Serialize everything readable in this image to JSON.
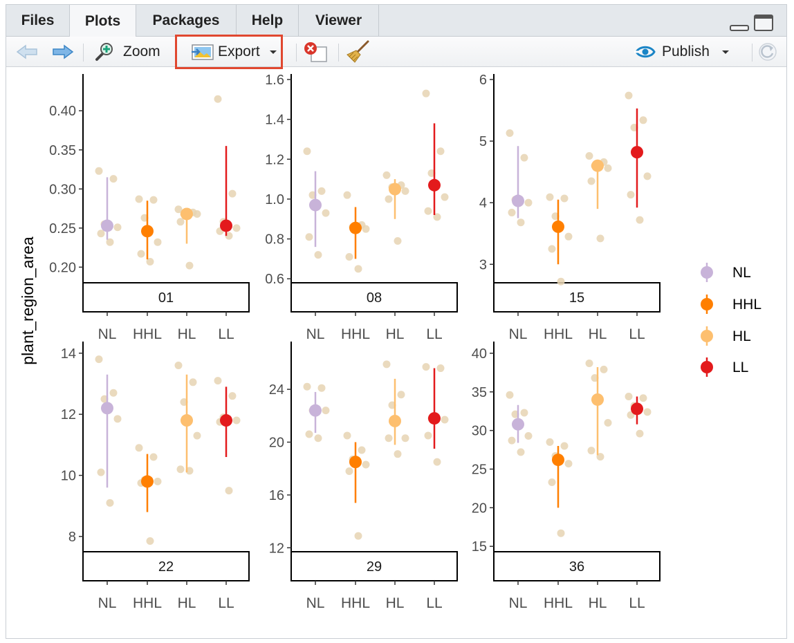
{
  "tabs": [
    {
      "label": "Files",
      "active": false
    },
    {
      "label": "Plots",
      "active": true
    },
    {
      "label": "Packages",
      "active": false
    },
    {
      "label": "Help",
      "active": false
    },
    {
      "label": "Viewer",
      "active": false
    }
  ],
  "toolbar": {
    "zoom_label": "Zoom",
    "export_label": "Export",
    "publish_label": "Publish",
    "icons": [
      "back-arrow-icon",
      "forward-arrow-icon",
      "zoom-icon",
      "export-image-icon",
      "remove-plot-icon",
      "clear-all-broom-icon",
      "publish-icon",
      "refresh-icon"
    ]
  },
  "colors": {
    "NL": "#c8b3d9",
    "HHL": "#ff7f00",
    "HL": "#fdbf6f",
    "LL": "#e31a1c",
    "raw_point": "#e6d3b3",
    "highlight": "#e0472f"
  },
  "chart_data": {
    "type": "scatter",
    "ylabel": "plant_region_area",
    "categories": [
      "NL",
      "HHL",
      "HL",
      "LL"
    ],
    "legend": {
      "position": "right",
      "entries": [
        "NL",
        "HHL",
        "HL",
        "LL"
      ]
    },
    "grid": false,
    "facets": [
      {
        "label": "01",
        "ylim": [
          0.18,
          0.44
        ],
        "yticks": [
          0.2,
          0.25,
          0.3,
          0.35,
          0.4
        ],
        "ytick_labels": [
          "0.20",
          "0.25",
          "0.30",
          "0.35",
          "0.40"
        ],
        "summary": [
          {
            "group": "NL",
            "mean": 0.253,
            "lo": 0.235,
            "hi": 0.315
          },
          {
            "group": "HHL",
            "mean": 0.246,
            "lo": 0.21,
            "hi": 0.285
          },
          {
            "group": "HL",
            "mean": 0.268,
            "lo": 0.23,
            "hi": 0.275
          },
          {
            "group": "LL",
            "mean": 0.253,
            "lo": 0.24,
            "hi": 0.355
          }
        ],
        "points": [
          {
            "group": "NL",
            "values": [
              0.323,
              0.313,
              0.255,
              0.251,
              0.243,
              0.232
            ]
          },
          {
            "group": "HHL",
            "values": [
              0.287,
              0.286,
              0.263,
              0.232,
              0.217,
              0.207
            ]
          },
          {
            "group": "HL",
            "values": [
              0.274,
              0.27,
              0.268,
              0.268,
              0.258,
              0.202
            ]
          },
          {
            "group": "LL",
            "values": [
              0.415,
              0.294,
              0.258,
              0.25,
              0.246,
              0.24
            ]
          }
        ]
      },
      {
        "label": "08",
        "ylim": [
          0.58,
          1.6
        ],
        "yticks": [
          0.6,
          0.8,
          1.0,
          1.2,
          1.4,
          1.6
        ],
        "ytick_labels": [
          "0.6",
          "0.8",
          "1.0",
          "1.2",
          "1.4",
          "1.6"
        ],
        "summary": [
          {
            "group": "NL",
            "mean": 0.97,
            "lo": 0.76,
            "hi": 1.14
          },
          {
            "group": "HHL",
            "mean": 0.855,
            "lo": 0.7,
            "hi": 0.96
          },
          {
            "group": "HL",
            "mean": 1.05,
            "lo": 0.9,
            "hi": 1.1
          },
          {
            "group": "LL",
            "mean": 1.07,
            "lo": 0.92,
            "hi": 1.38
          }
        ],
        "points": [
          {
            "group": "NL",
            "values": [
              1.24,
              1.04,
              1.02,
              0.93,
              0.81,
              0.72
            ]
          },
          {
            "group": "HHL",
            "values": [
              1.02,
              0.87,
              0.86,
              0.85,
              0.71,
              0.65
            ]
          },
          {
            "group": "HL",
            "values": [
              1.12,
              1.07,
              1.06,
              1.04,
              1.0,
              0.79
            ]
          },
          {
            "group": "LL",
            "values": [
              1.53,
              1.24,
              1.13,
              1.01,
              0.94,
              0.91
            ]
          }
        ]
      },
      {
        "label": "15",
        "ylim": [
          2.7,
          6.0
        ],
        "yticks": [
          3,
          4,
          5,
          6
        ],
        "ytick_labels": [
          "3",
          "4",
          "5",
          "6"
        ],
        "summary": [
          {
            "group": "NL",
            "mean": 4.03,
            "lo": 3.75,
            "hi": 4.92
          },
          {
            "group": "HHL",
            "mean": 3.61,
            "lo": 3.0,
            "hi": 4.05
          },
          {
            "group": "HL",
            "mean": 4.6,
            "lo": 3.9,
            "hi": 4.7
          },
          {
            "group": "LL",
            "mean": 4.82,
            "lo": 3.92,
            "hi": 5.53
          }
        ],
        "points": [
          {
            "group": "NL",
            "values": [
              5.13,
              4.73,
              4.05,
              4.0,
              3.84,
              3.68
            ]
          },
          {
            "group": "HHL",
            "values": [
              4.09,
              4.07,
              3.78,
              3.45,
              3.25,
              2.72
            ]
          },
          {
            "group": "HL",
            "values": [
              4.76,
              4.66,
              4.6,
              4.56,
              4.35,
              3.42
            ]
          },
          {
            "group": "LL",
            "values": [
              5.74,
              5.34,
              5.22,
              4.43,
              4.13,
              3.72
            ]
          }
        ]
      },
      {
        "label": "22",
        "ylim": [
          7.5,
          14.2
        ],
        "yticks": [
          8,
          10,
          12,
          14
        ],
        "ytick_labels": [
          "8",
          "10",
          "12",
          "14"
        ],
        "summary": [
          {
            "group": "NL",
            "mean": 12.2,
            "lo": 9.6,
            "hi": 13.3
          },
          {
            "group": "HHL",
            "mean": 9.8,
            "lo": 8.8,
            "hi": 10.7
          },
          {
            "group": "HL",
            "mean": 11.8,
            "lo": 10.1,
            "hi": 13.3
          },
          {
            "group": "LL",
            "mean": 11.8,
            "lo": 10.6,
            "hi": 12.9
          }
        ],
        "points": [
          {
            "group": "NL",
            "values": [
              13.8,
              12.7,
              12.5,
              11.85,
              10.1,
              9.1
            ]
          },
          {
            "group": "HHL",
            "values": [
              10.9,
              10.6,
              9.85,
              9.8,
              9.75,
              7.85
            ]
          },
          {
            "group": "HL",
            "values": [
              13.6,
              13.05,
              12.4,
              11.3,
              10.2,
              10.15
            ]
          },
          {
            "group": "LL",
            "values": [
              13.1,
              12.6,
              11.9,
              11.8,
              11.75,
              9.5
            ]
          }
        ]
      },
      {
        "label": "29",
        "ylim": [
          11.7,
          27.2
        ],
        "yticks": [
          12,
          16,
          20,
          24
        ],
        "ytick_labels": [
          "12",
          "16",
          "20",
          "24"
        ],
        "summary": [
          {
            "group": "NL",
            "mean": 22.4,
            "lo": 20.7,
            "hi": 23.8
          },
          {
            "group": "HHL",
            "mean": 18.5,
            "lo": 15.4,
            "hi": 20.0
          },
          {
            "group": "HL",
            "mean": 21.6,
            "lo": 19.8,
            "hi": 24.8
          },
          {
            "group": "LL",
            "mean": 21.8,
            "lo": 19.5,
            "hi": 25.6
          }
        ],
        "points": [
          {
            "group": "NL",
            "values": [
              24.2,
              24.1,
              22.4,
              22.4,
              20.6,
              20.3
            ]
          },
          {
            "group": "HHL",
            "values": [
              20.5,
              19.4,
              18.7,
              18.3,
              17.8,
              12.9
            ]
          },
          {
            "group": "HL",
            "values": [
              25.9,
              23.6,
              22.8,
              20.3,
              20.3,
              19.1
            ]
          },
          {
            "group": "LL",
            "values": [
              25.7,
              25.6,
              21.8,
              21.7,
              20.5,
              18.5
            ]
          }
        ]
      },
      {
        "label": "36",
        "ylim": [
          14.3,
          40.8
        ],
        "yticks": [
          15,
          20,
          25,
          30,
          35,
          40
        ],
        "ytick_labels": [
          "15",
          "20",
          "25",
          "30",
          "35",
          "40"
        ],
        "summary": [
          {
            "group": "NL",
            "mean": 30.8,
            "lo": 28.4,
            "hi": 33.3
          },
          {
            "group": "HHL",
            "mean": 26.2,
            "lo": 20.0,
            "hi": 28.0
          },
          {
            "group": "HL",
            "mean": 34.0,
            "lo": 26.8,
            "hi": 38.2
          },
          {
            "group": "LL",
            "mean": 32.8,
            "lo": 30.8,
            "hi": 34.4
          }
        ],
        "points": [
          {
            "group": "NL",
            "values": [
              34.6,
              32.3,
              32.1,
              29.3,
              28.7,
              27.2
            ]
          },
          {
            "group": "HHL",
            "values": [
              28.5,
              28.0,
              26.7,
              25.7,
              23.3,
              16.7
            ]
          },
          {
            "group": "HL",
            "values": [
              38.7,
              37.9,
              36.8,
              31.0,
              27.4,
              26.6
            ]
          },
          {
            "group": "LL",
            "values": [
              34.4,
              34.2,
              33.2,
              32.4,
              32.0,
              29.6
            ]
          }
        ]
      }
    ]
  }
}
